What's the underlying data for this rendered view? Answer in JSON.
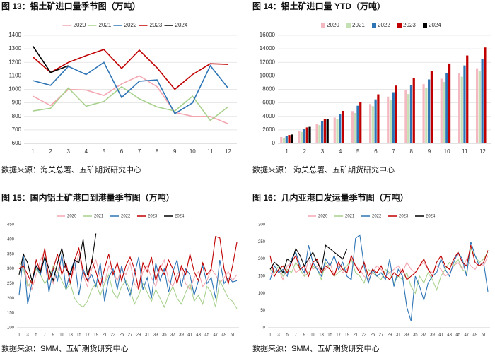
{
  "chart_data": [
    {
      "type": "line",
      "title": "图 13：铝土矿进口量季节图（万吨）",
      "source": "数据来源：海关总署、五矿期货研究中心",
      "categories": [
        "1",
        "2",
        "3",
        "4",
        "5",
        "6",
        "7",
        "8",
        "9",
        "10",
        "11",
        "12"
      ],
      "ylim": [
        600,
        1400
      ],
      "yticks": [
        600,
        700,
        800,
        900,
        1000,
        1100,
        1200,
        1300,
        1400
      ],
      "grid": true,
      "series": [
        {
          "name": "2020",
          "color": "#f4a6b0",
          "values": [
            950,
            880,
            1000,
            995,
            955,
            1040,
            1100,
            1020,
            830,
            800,
            800,
            745
          ]
        },
        {
          "name": "2021",
          "color": "#a9d18e",
          "values": [
            840,
            860,
            1010,
            875,
            910,
            1020,
            930,
            870,
            840,
            950,
            770,
            870
          ]
        },
        {
          "name": "2022",
          "color": "#2e75b6",
          "values": [
            1065,
            1030,
            1170,
            1110,
            1200,
            940,
            1060,
            1070,
            820,
            900,
            1175,
            1010
          ]
        },
        {
          "name": "2023",
          "color": "#c00000",
          "values": [
            1240,
            1125,
            1200,
            1250,
            1295,
            1155,
            1290,
            1160,
            1000,
            1110,
            1190,
            1185
          ]
        },
        {
          "name": "2024",
          "color": "#000000",
          "values": [
            1320,
            1125,
            1175,
            null,
            null,
            null,
            null,
            null,
            null,
            null,
            null,
            null
          ]
        }
      ]
    },
    {
      "type": "bar",
      "title": "图 14：铝土矿进口量 YTD（万吨）",
      "source": "数据来源：  海关总署、五矿期货研究中心",
      "categories": [
        "1",
        "2",
        "3",
        "4",
        "5",
        "6",
        "7",
        "8",
        "9",
        "10",
        "11",
        "12"
      ],
      "ylim": [
        0,
        16000
      ],
      "yticks": [
        0,
        2000,
        4000,
        6000,
        8000,
        10000,
        12000,
        14000,
        16000
      ],
      "grid": true,
      "series": [
        {
          "name": "2020",
          "color": "#f4b8c0",
          "values": [
            950,
            1830,
            2830,
            3825,
            4780,
            5820,
            6920,
            7940,
            8770,
            9570,
            10370,
            11115
          ]
        },
        {
          "name": "2021",
          "color": "#c5e0b4",
          "values": [
            840,
            1700,
            2710,
            3585,
            4495,
            5515,
            6445,
            7315,
            8155,
            9105,
            9875,
            10745
          ]
        },
        {
          "name": "2022",
          "color": "#2e75b6",
          "values": [
            1065,
            2095,
            3265,
            4375,
            5575,
            6515,
            7575,
            8645,
            9465,
            10365,
            11540,
            12550
          ]
        },
        {
          "name": "2023",
          "color": "#c00000",
          "values": [
            1240,
            2365,
            3565,
            4815,
            6110,
            7265,
            8555,
            9715,
            10715,
            11825,
            13015,
            14200
          ]
        },
        {
          "name": "2024",
          "color": "#000000",
          "values": [
            1320,
            2445,
            3620,
            null,
            null,
            null,
            null,
            null,
            null,
            null,
            null,
            null
          ]
        }
      ]
    },
    {
      "type": "line",
      "title": "图 15：国内铝土矿港口到港量季节图（万吨）",
      "source": "数据来源：SMM、五矿期货研究中心",
      "categories": [
        "1",
        null,
        "3",
        null,
        "5",
        null,
        "7",
        null,
        "9",
        null,
        "11",
        null,
        "13",
        null,
        "15",
        null,
        "17",
        null,
        "19",
        null,
        "21",
        null,
        "23",
        null,
        "25",
        null,
        "27",
        null,
        "29",
        null,
        "31",
        null,
        "33",
        null,
        "35",
        null,
        "37",
        null,
        "39",
        null,
        "41",
        null,
        "43",
        null,
        "45",
        null,
        "47",
        null,
        "49",
        null,
        "51",
        null
      ],
      "ylim": [
        100,
        450
      ],
      "yticks": [
        100,
        150,
        200,
        250,
        300,
        350,
        400,
        450
      ],
      "grid": false,
      "series": [
        {
          "name": "2020",
          "color": "#f4a6b0",
          "values": [
            300,
            320,
            250,
            230,
            280,
            330,
            360,
            300,
            250,
            290,
            340,
            310,
            260,
            300,
            350,
            280,
            240,
            300,
            330,
            270,
            250,
            310,
            290,
            260,
            300,
            280,
            320,
            250,
            230,
            290,
            310,
            270,
            240,
            300,
            330,
            260,
            240,
            280,
            300,
            250,
            230,
            270,
            290,
            240,
            260,
            300,
            280,
            250,
            270,
            290,
            260,
            280
          ]
        },
        {
          "name": "2021",
          "color": "#a9d18e",
          "values": [
            320,
            300,
            240,
            260,
            300,
            280,
            250,
            270,
            310,
            290,
            260,
            230,
            250,
            200,
            180,
            170,
            190,
            230,
            250,
            210,
            250,
            280,
            220,
            200,
            240,
            260,
            230,
            180,
            210,
            250,
            220,
            190,
            230,
            200,
            170,
            210,
            240,
            200,
            180,
            220,
            250,
            190,
            210,
            180,
            240,
            220,
            170,
            260,
            230,
            200,
            190,
            165
          ]
        },
        {
          "name": "2022",
          "color": "#2e75b6",
          "values": [
            210,
            350,
            180,
            250,
            310,
            280,
            340,
            220,
            300,
            260,
            350,
            230,
            290,
            330,
            210,
            300,
            260,
            280,
            240,
            320,
            190,
            270,
            300,
            230,
            310,
            250,
            210,
            280,
            340,
            230,
            270,
            200,
            320,
            260,
            300,
            220,
            290,
            330,
            240,
            300,
            280,
            210,
            260,
            310,
            250,
            270,
            200,
            330,
            250,
            270,
            255,
            260
          ]
        },
        {
          "name": "2023",
          "color": "#c00000",
          "values": [
            300,
            310,
            280,
            250,
            330,
            290,
            370,
            260,
            300,
            350,
            280,
            320,
            250,
            330,
            370,
            290,
            260,
            330,
            290,
            240,
            300,
            350,
            280,
            320,
            260,
            310,
            340,
            300,
            230,
            320,
            290,
            340,
            260,
            310,
            280,
            330,
            300,
            250,
            310,
            280,
            350,
            290,
            260,
            320,
            280,
            300,
            410,
            405,
            300,
            250,
            310,
            390
          ]
        },
        {
          "name": "2024",
          "color": "#000000",
          "values": [
            280,
            350,
            320,
            260,
            310,
            290,
            340,
            300,
            260,
            320,
            370,
            300,
            280,
            330,
            320,
            400,
            280,
            320,
            420,
            null,
            null,
            null,
            null,
            null,
            null,
            null,
            null,
            null,
            null,
            null,
            null,
            null,
            null,
            null,
            null,
            null,
            null,
            null,
            null,
            null,
            null,
            null,
            null,
            null,
            null,
            null,
            null,
            null,
            null,
            null,
            null,
            null
          ]
        }
      ]
    },
    {
      "type": "line",
      "title": "图 16：几内亚港口发运量季节图（万吨）",
      "source": "数据来源：SMM、五矿期货研究中心",
      "categories": [
        "1",
        null,
        "3",
        null,
        "5",
        null,
        "7",
        null,
        "9",
        null,
        "11",
        null,
        "13",
        null,
        "15",
        null,
        "17",
        null,
        "19",
        null,
        "21",
        null,
        "23",
        null,
        "25",
        null,
        "27",
        null,
        "29",
        null,
        "31",
        null,
        "33",
        null,
        "35",
        null,
        "37",
        null,
        "39",
        null,
        "41",
        null,
        "43",
        null,
        "45",
        null,
        "47",
        null,
        "49",
        null,
        "51",
        null
      ],
      "ylim": [
        0,
        300
      ],
      "yticks": [
        0,
        50,
        100,
        150,
        200,
        250,
        300
      ],
      "grid": false,
      "series": [
        {
          "name": "2020",
          "color": "#f4a6b0",
          "values": [
            160,
            150,
            170,
            140,
            180,
            190,
            160,
            170,
            150,
            200,
            170,
            180,
            160,
            170,
            190,
            150,
            180,
            160,
            170,
            200,
            180,
            170,
            150,
            140,
            160,
            180,
            170,
            150,
            160,
            170,
            180,
            160,
            190,
            170,
            160,
            180,
            190,
            170,
            160,
            180,
            170,
            150,
            160,
            180,
            190,
            170,
            200,
            180,
            170,
            190,
            180,
            210
          ]
        },
        {
          "name": "2021",
          "color": "#a9d18e",
          "values": [
            170,
            160,
            180,
            150,
            170,
            160,
            190,
            170,
            150,
            160,
            180,
            170,
            140,
            190,
            170,
            150,
            160,
            170,
            180,
            200,
            160,
            150,
            130,
            170,
            160,
            150,
            140,
            170,
            160,
            130,
            150,
            140,
            160,
            120,
            100,
            150,
            130,
            160,
            140,
            110,
            150,
            170,
            190,
            180,
            200,
            170,
            160,
            230,
            210,
            190,
            200,
            220
          ]
        },
        {
          "name": "2022",
          "color": "#2e75b6",
          "values": [
            140,
            180,
            160,
            170,
            150,
            200,
            220,
            180,
            160,
            240,
            190,
            170,
            150,
            200,
            180,
            210,
            170,
            190,
            150,
            140,
            260,
            270,
            180,
            130,
            170,
            150,
            160,
            140,
            200,
            120,
            170,
            150,
            60,
            20,
            150,
            120,
            80,
            130,
            150,
            160,
            200,
            170,
            150,
            190,
            220,
            200,
            150,
            250,
            210,
            180,
            190,
            105
          ]
        },
        {
          "name": "2023",
          "color": "#c00000",
          "values": [
            210,
            150,
            170,
            180,
            160,
            190,
            210,
            170,
            180,
            150,
            190,
            200,
            160,
            180,
            170,
            150,
            190,
            170,
            160,
            210,
            180,
            160,
            190,
            150,
            170,
            160,
            180,
            150,
            140,
            160,
            150,
            170,
            140,
            150,
            160,
            180,
            200,
            170,
            150,
            190,
            210,
            180,
            170,
            200,
            220,
            190,
            180,
            240,
            190,
            180,
            190,
            225
          ]
        },
        {
          "name": "2024",
          "color": "#000000",
          "values": [
            170,
            190,
            180,
            160,
            200,
            190,
            230,
            210,
            180,
            200,
            220,
            190,
            170,
            240,
            230,
            220,
            210,
            200,
            230,
            null,
            null,
            null,
            null,
            null,
            null,
            null,
            null,
            null,
            null,
            null,
            null,
            null,
            null,
            null,
            null,
            null,
            null,
            null,
            null,
            null,
            null,
            null,
            null,
            null,
            null,
            null,
            null,
            null,
            null,
            null,
            null,
            null
          ]
        }
      ]
    }
  ]
}
